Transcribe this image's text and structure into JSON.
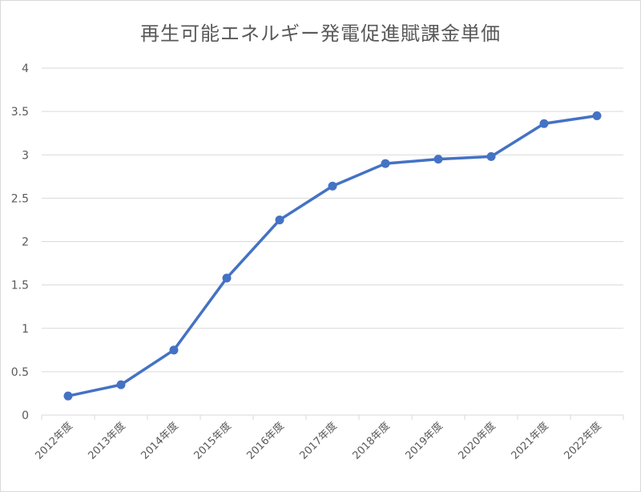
{
  "chart_data": {
    "type": "line",
    "title": "再生可能エネルギー発電促進賦課金単価",
    "categories": [
      "2012年度",
      "2013年度",
      "2014年度",
      "2015年度",
      "2016年度",
      "2017年度",
      "2018年度",
      "2019年度",
      "2020年度",
      "2021年度",
      "2022年度"
    ],
    "series": [
      {
        "values": [
          0.22,
          0.35,
          0.75,
          1.58,
          2.25,
          2.64,
          2.9,
          2.95,
          2.98,
          3.36,
          3.45
        ]
      }
    ],
    "y_ticks": [
      "0",
      "0.5",
      "1",
      "1.5",
      "2",
      "2.5",
      "3",
      "3.5",
      "4"
    ],
    "ylim": [
      0,
      4
    ],
    "grid": true,
    "colors": {
      "line": "#4472c4",
      "grid": "#d9d9d9",
      "text": "#595959"
    }
  }
}
